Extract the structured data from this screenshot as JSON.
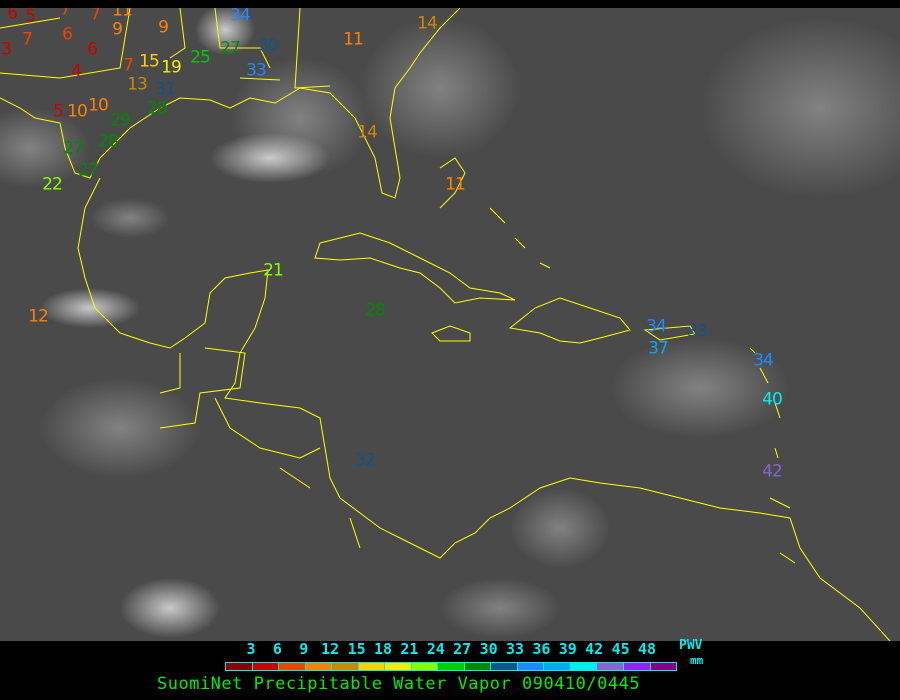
{
  "title": "SuomiNet Precipitable Water Vapor 090410/0445",
  "legend": {
    "ticks": [
      "3",
      "6",
      "9",
      "12",
      "15",
      "18",
      "21",
      "24",
      "27",
      "30",
      "33",
      "36",
      "39",
      "42",
      "45",
      "48"
    ],
    "unit_top": "PWV",
    "unit_bottom": "mm",
    "colors": [
      "#880000",
      "#cc0000",
      "#ee4400",
      "#ff8000",
      "#cc8800",
      "#ffd000",
      "#eeee00",
      "#88ff00",
      "#00cc00",
      "#008800",
      "#115588",
      "#2288ff",
      "#00aaee",
      "#00eeee",
      "#8866cc",
      "#9922ee",
      "#880088"
    ]
  },
  "map": {
    "background": "infrared satellite imagery",
    "coastline_color": "#ffff00",
    "stations": [
      {
        "value": "6",
        "color": "#cc0000"
      },
      {
        "value": "5",
        "color": "#cc0000"
      },
      {
        "value": "7",
        "color": "#ee4400"
      },
      {
        "value": "7",
        "color": "#ee4400"
      },
      {
        "value": "11",
        "color": "#ff8000"
      },
      {
        "value": "9",
        "color": "#ff8000"
      },
      {
        "value": "6",
        "color": "#ee4400"
      },
      {
        "value": "3",
        "color": "#cc0000"
      },
      {
        "value": "7",
        "color": "#ee4400"
      },
      {
        "value": "6",
        "color": "#cc0000"
      },
      {
        "value": "4",
        "color": "#cc0000"
      },
      {
        "value": "7",
        "color": "#ee4400"
      },
      {
        "value": "15",
        "color": "#ffd000"
      },
      {
        "value": "19",
        "color": "#eeee00"
      },
      {
        "value": "13",
        "color": "#cc8800"
      },
      {
        "value": "31",
        "color": "#115588"
      },
      {
        "value": "5",
        "color": "#cc0000"
      },
      {
        "value": "10",
        "color": "#ff8000"
      },
      {
        "value": "10",
        "color": "#ff8000"
      },
      {
        "value": "28",
        "color": "#008800"
      },
      {
        "value": "29",
        "color": "#008800"
      },
      {
        "value": "28",
        "color": "#008800"
      },
      {
        "value": "27",
        "color": "#008800"
      },
      {
        "value": "27",
        "color": "#008800"
      },
      {
        "value": "22",
        "color": "#88ff00"
      },
      {
        "value": "25",
        "color": "#00cc00"
      },
      {
        "value": "27",
        "color": "#008800"
      },
      {
        "value": "34",
        "color": "#2288ff"
      },
      {
        "value": "30",
        "color": "#115588"
      },
      {
        "value": "33",
        "color": "#2288ff"
      },
      {
        "value": "9",
        "color": "#ff8000"
      },
      {
        "value": "11",
        "color": "#ff8000"
      },
      {
        "value": "14",
        "color": "#cc8800"
      },
      {
        "value": "14",
        "color": "#cc8800"
      },
      {
        "value": "11",
        "color": "#ff8000"
      },
      {
        "value": "12",
        "color": "#ff8000"
      },
      {
        "value": "21",
        "color": "#88ff00"
      },
      {
        "value": "28",
        "color": "#008800"
      },
      {
        "value": "32",
        "color": "#115588"
      },
      {
        "value": "34",
        "color": "#2288ff"
      },
      {
        "value": "37",
        "color": "#00aaee"
      },
      {
        "value": "33",
        "color": "#115588"
      },
      {
        "value": "34",
        "color": "#2288ff"
      },
      {
        "value": "40",
        "color": "#00eeee"
      },
      {
        "value": "42",
        "color": "#8866cc"
      }
    ]
  }
}
